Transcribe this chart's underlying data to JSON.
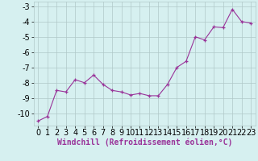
{
  "x": [
    0,
    1,
    2,
    3,
    4,
    5,
    6,
    7,
    8,
    9,
    10,
    11,
    12,
    13,
    14,
    15,
    16,
    17,
    18,
    19,
    20,
    21,
    22,
    23
  ],
  "y": [
    -10.5,
    -10.2,
    -8.5,
    -8.6,
    -7.8,
    -8.0,
    -7.5,
    -8.1,
    -8.5,
    -8.6,
    -8.8,
    -8.7,
    -8.85,
    -8.85,
    -8.1,
    -7.0,
    -6.6,
    -5.0,
    -5.2,
    -4.35,
    -4.4,
    -3.2,
    -4.0,
    -4.1
  ],
  "line_color": "#993399",
  "marker": "+",
  "marker_size": 3,
  "bg_color": "#d6f0f0",
  "grid_color": "#b0c8c8",
  "xlabel": "Windchill (Refroidissement éolien,°C)",
  "xlabel_fontsize": 7,
  "tick_fontsize": 7,
  "xlim": [
    -0.5,
    23.5
  ],
  "ylim": [
    -10.8,
    -2.7
  ],
  "yticks": [
    -10,
    -9,
    -8,
    -7,
    -6,
    -5,
    -4,
    -3
  ],
  "xticks": [
    0,
    1,
    2,
    3,
    4,
    5,
    6,
    7,
    8,
    9,
    10,
    11,
    12,
    13,
    14,
    15,
    16,
    17,
    18,
    19,
    20,
    21,
    22,
    23
  ]
}
